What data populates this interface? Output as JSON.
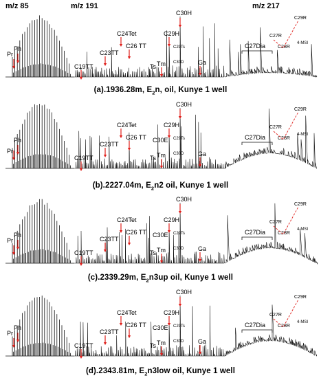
{
  "headers": {
    "mz85": "m/z 85",
    "mz191": "m/z 191",
    "mz217": "m/z 217"
  },
  "panels": [
    {
      "caption": {
        "prefix": "(a).1936.28m, E",
        "sub": "2",
        "rest": "n,  oil, Kunye 1 well"
      },
      "labels": {
        "pr": "Pr",
        "ph": "Ph",
        "c19tt": "C19TT",
        "c23tt": "C23TT",
        "c24tet": "C24Tet",
        "c26tt": "C26 TT",
        "ts": "Ts",
        "tm": "Tm",
        "c30h": "C30H",
        "c29h": "C29H",
        "c30e": "",
        "c29ts": "C29Ts",
        "c30d": "C30D",
        "ga": "Ga",
        "dia": "C27Dia",
        "c27r": "C27R",
        "c28r": "C28R",
        "c29r": "C29R",
        "msi": "4-MSI"
      }
    },
    {
      "caption": {
        "prefix": "(b).2227.04m, E",
        "sub": "2",
        "rest": "n2 oil, Kunye 1 well"
      },
      "labels": {
        "pr": "Pr",
        "ph": "Ph",
        "c19tt": "C19TT",
        "c23tt": "C23TT",
        "c24tet": "C24Tet",
        "c26tt": "C26 TT",
        "ts": "Ts",
        "tm": "Tm",
        "c30h": "C30H",
        "c29h": "C29H",
        "c30e": "C30E",
        "c29ts": "C29Ts",
        "c30d": "C30D",
        "ga": "Ga",
        "dia": "C27Dia",
        "c27r": "C27R",
        "c28r": "C28R",
        "c29r": "C29R",
        "msi": "4-MSI"
      }
    },
    {
      "caption": {
        "prefix": "(c).2339.29m, E",
        "sub": "2",
        "rest": "n3up  oil, Kunye 1 well"
      },
      "labels": {
        "pr": "Pr",
        "ph": "Ph",
        "c19tt": "C19TT",
        "c23tt": "C23TT",
        "c24tet": "C24Tet",
        "c26tt": "C26 TT",
        "ts": "Ts",
        "tm": "Tm",
        "c30h": "C30H",
        "c29h": "C29H",
        "c30e": "C30E",
        "c29ts": "C29Ts",
        "c30d": "C30D",
        "ga": "Ga",
        "dia": "C27Dia",
        "c27r": "C27R",
        "c28r": "C28R",
        "c29r": "C29R",
        "msi": "4-MSI"
      }
    },
    {
      "caption": {
        "prefix": "(d).2343.81m, E",
        "sub": "2",
        "rest": "n3low  oil, Kunye 1 well"
      },
      "labels": {
        "pr": "Pr",
        "ph": "Ph",
        "c19tt": "C19TT",
        "c23tt": "C23TT",
        "c24tet": "C24Tet",
        "c26tt": "C26 TT",
        "ts": "Ts",
        "tm": "Tm",
        "c30h": "C30H",
        "c29h": "C29H",
        "c30e": "C30E",
        "c29ts": "C29Ts",
        "c30d": "C30D",
        "ga": "Ga",
        "dia": "C27Dia",
        "c27r": "C27R",
        "c28r": "C28R",
        "c29r": "C29R",
        "msi": "4-MSI"
      }
    }
  ],
  "colors": {
    "trace": "#111111",
    "marker": "#e0201c"
  }
}
